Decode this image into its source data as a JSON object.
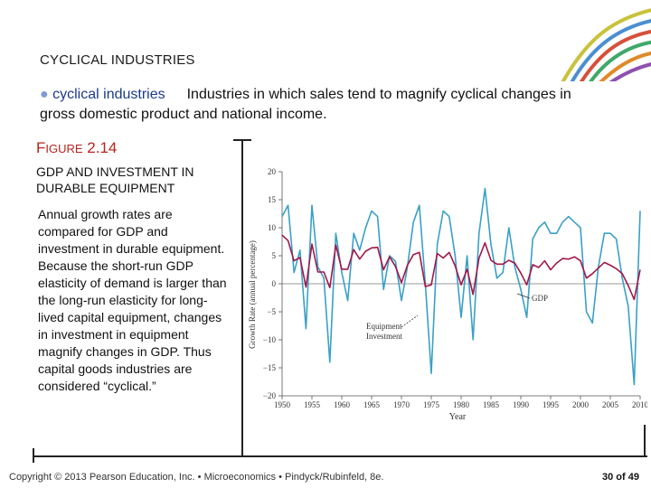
{
  "slide": {
    "heading": "CYCLICAL INDUSTRIES",
    "definition": {
      "bullet": "●",
      "term": "cyclical industries",
      "text": "Industries in which sales tend to magnify cyclical changes in gross domestic product and national income."
    },
    "figure": {
      "label_initial": "F",
      "label_rest": "IGURE",
      "label_number": "2.14",
      "title": "GDP AND INVESTMENT IN DURABLE EQUIPMENT"
    },
    "caption": "Annual growth rates are compared for GDP and investment in durable equipment. Because the short-run GDP elasticity of demand is larger than the long-run elasticity for long-lived capital equipment, changes in investment in equipment magnify changes in GDP. Thus capital goods industries are considered “cyclical.”",
    "footer": "Copyright © 2013 Pearson Education, Inc. • Microeconomics • Pindyck/Rubinfeld, 8e.",
    "page": "30 of 49",
    "colors": {
      "accent_red": "#b8241b",
      "term_blue": "#1b3a8c",
      "gdp_line": "#a2174a",
      "investment_line": "#3aa0c6"
    }
  },
  "chart_data": {
    "type": "line",
    "xlabel": "Year",
    "ylabel": "Growth Rate (annual percentage)",
    "xlim": [
      1950,
      2010
    ],
    "ylim": [
      -20,
      20
    ],
    "x_ticks": [
      "1950",
      "1955",
      "1960",
      "1965",
      "1970",
      "1975",
      "1980",
      "1985",
      "1990",
      "1995",
      "2000",
      "2005",
      "2010"
    ],
    "y_ticks": [
      "20",
      "15",
      "10",
      "5",
      "0",
      "-5",
      "-10",
      "-15",
      "-20"
    ],
    "x": [
      1950,
      1951,
      1952,
      1953,
      1954,
      1955,
      1956,
      1957,
      1958,
      1959,
      1960,
      1961,
      1962,
      1963,
      1964,
      1965,
      1966,
      1967,
      1968,
      1969,
      1970,
      1971,
      1972,
      1973,
      1974,
      1975,
      1976,
      1977,
      1978,
      1979,
      1980,
      1981,
      1982,
      1983,
      1984,
      1985,
      1986,
      1987,
      1988,
      1989,
      1990,
      1991,
      1992,
      1993,
      1994,
      1995,
      1996,
      1997,
      1998,
      1999,
      2000,
      2001,
      2002,
      2003,
      2004,
      2005,
      2006,
      2007,
      2008,
      2009,
      2010
    ],
    "series": [
      {
        "name": "Equipment Investment",
        "values": [
          12,
          14,
          2,
          6,
          -8,
          14,
          3,
          1,
          -14,
          9,
          2,
          -3,
          9,
          6,
          10,
          13,
          12,
          -1,
          5,
          4,
          -3,
          3,
          11,
          14,
          0,
          -16,
          7,
          13,
          12,
          5,
          -6,
          5,
          -10,
          9,
          17,
          7,
          1,
          2,
          10,
          3,
          -1,
          -6,
          8,
          10,
          11,
          9,
          9,
          11,
          12,
          11,
          10,
          -5,
          -7,
          3,
          9,
          9,
          8,
          1,
          -4,
          -18,
          13
        ]
      },
      {
        "name": "GDP",
        "values": [
          8.7,
          7.7,
          4.1,
          4.7,
          -0.6,
          7.1,
          2.1,
          2.1,
          -0.7,
          6.9,
          2.6,
          2.6,
          6.1,
          4.4,
          5.8,
          6.4,
          6.5,
          2.5,
          4.8,
          3.1,
          0.2,
          3.3,
          5.2,
          5.6,
          -0.5,
          -0.2,
          5.4,
          4.6,
          5.6,
          3.2,
          -0.2,
          2.6,
          -1.9,
          4.6,
          7.3,
          4.2,
          3.5,
          3.5,
          4.2,
          3.7,
          1.9,
          -0.2,
          3.4,
          2.9,
          4.1,
          2.5,
          3.7,
          4.5,
          4.4,
          4.8,
          4.1,
          1.0,
          1.8,
          2.8,
          3.8,
          3.3,
          2.7,
          1.8,
          -0.3,
          -2.8,
          2.5
        ]
      }
    ],
    "annotations": [
      "GDP",
      "Equipment Investment"
    ],
    "grid": false,
    "legend": "none"
  }
}
